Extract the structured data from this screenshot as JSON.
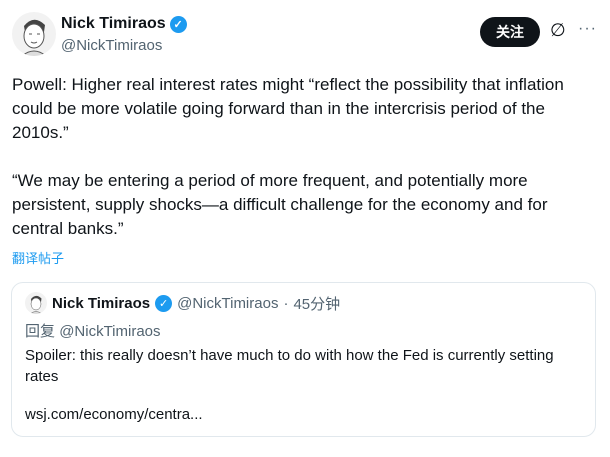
{
  "author": {
    "name": "Nick Timiraos",
    "handle": "@NickTimiraos",
    "verified": true
  },
  "actions": {
    "follow_label": "关注",
    "grok_icon": "slashed-circle-icon",
    "more_label": "···"
  },
  "tweet": {
    "paragraphs": [
      "Powell: Higher real interest rates might “reflect the possibility that inflation could be more volatile going forward than in the intercrisis period of the 2010s.”",
      "“We may be entering a period of more frequent, and potentially more persistent, supply shocks—a difficult challenge for the economy and for central banks.”"
    ],
    "translate_label": "翻译帖子"
  },
  "quote": {
    "name": "Nick Timiraos",
    "handle": "@NickTimiraos",
    "separator": "·",
    "time": "45分钟",
    "reply_prefix": "回复",
    "reply_handle": "@NickTimiraos",
    "text": "Spoiler: this really doesn’t have much to do with how the Fed is currently setting rates",
    "link": "wsj.com/economy/centra..."
  },
  "colors": {
    "accent": "#1d9bf0",
    "text": "#0f1419",
    "secondary": "#536471"
  }
}
